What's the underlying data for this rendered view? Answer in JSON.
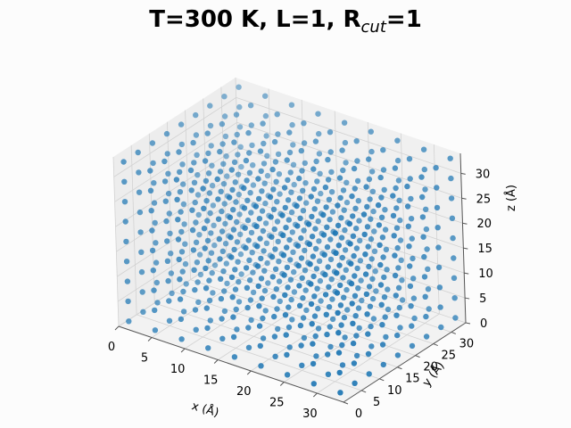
{
  "chart_data": {
    "type": "scatter",
    "projection": "3d",
    "title": {
      "prefix": "T=300 K, L=1, R",
      "subscript": "cut",
      "suffix": "=1"
    },
    "xlabel": "x (Å)",
    "ylabel": "y (Å)",
    "zlabel": "z (Å)",
    "xticks": [
      "0",
      "5",
      "10",
      "15",
      "20",
      "25",
      "30"
    ],
    "yticks": [
      "0",
      "5",
      "10",
      "15",
      "20",
      "25",
      "30"
    ],
    "zticks": [
      "0",
      "5",
      "10",
      "15",
      "20",
      "25",
      "30"
    ],
    "xlim": [
      0,
      34
    ],
    "ylim": [
      0,
      34
    ],
    "zlim": [
      0,
      34
    ],
    "grid": true,
    "point_color": "#1f77b4",
    "lattice": {
      "description": "cubic lattice of atoms",
      "start": 1,
      "spacing": 4,
      "count_per_axis": 9
    }
  }
}
